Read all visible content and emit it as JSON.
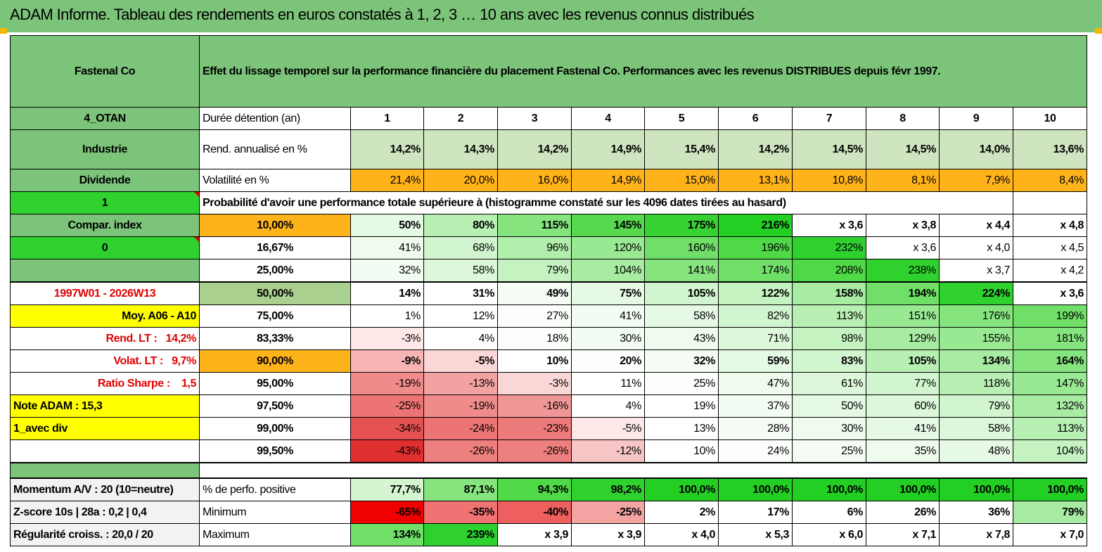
{
  "page_title": "ADAM Informe. Tableau des rendements en euros constatés à 1, 2, 3 … 10 ans avec les revenus connus distribués",
  "header": {
    "name": "Fastenal Co",
    "description": "Effet du lissage temporel sur la performance financière du placement Fastenal Co. Performances avec les revenus DISTRIBUES depuis févr 1997."
  },
  "left_labels": {
    "code": "4_OTAN",
    "sector": "Industrie",
    "type": "Dividende",
    "flag1": "1",
    "compar": "Compar. index",
    "flag0": "0",
    "period": "1997W01 - 2026W13",
    "moy": "Moy. A06 - A10",
    "rend_lt_label": "Rend. LT :",
    "rend_lt_value": "14,2%",
    "volat_lt_label": "Volat. LT :",
    "volat_lt_value": "9,7%",
    "sharpe_label": "Ratio Sharpe :",
    "sharpe_value": "1,5",
    "note": "Note ADAM : 15,3",
    "avec_div": "1_avec div",
    "momentum": "Momentum A/V : 20 (10=neutre)",
    "zscore": "Z-score 10s | 28a : 0,2 | 0,4",
    "regularite": "Régularité croiss. : 20,0 / 20"
  },
  "colors": {
    "green_header": "#7cc47a",
    "bright_green": "#2fd12f",
    "yellow": "#ffff00",
    "orange": "#ffb31a",
    "red_text": "#e00000"
  },
  "rows": {
    "duree": {
      "label": "Durée détention (an)",
      "values": [
        "1",
        "2",
        "3",
        "4",
        "5",
        "6",
        "7",
        "8",
        "9",
        "10"
      ]
    },
    "rend": {
      "label": "Rend. annualisé en %",
      "values": [
        "14,2%",
        "14,3%",
        "14,2%",
        "14,9%",
        "15,4%",
        "14,2%",
        "14,5%",
        "14,5%",
        "14,0%",
        "13,6%"
      ]
    },
    "vol": {
      "label": "Volatilité en %",
      "values": [
        "21,4%",
        "20,0%",
        "16,0%",
        "14,9%",
        "15,0%",
        "13,1%",
        "10,8%",
        "8,1%",
        "7,9%",
        "8,4%"
      ]
    },
    "proba_title": "Probabilité d'avoir une performance totale supérieure à (histogramme constaté sur les 4096 dates tirées au hasard)",
    "quantiles": [
      {
        "pct": "10,00%",
        "values": [
          "50%",
          "80%",
          "115%",
          "145%",
          "175%",
          "216%",
          "x 3,6",
          "x 3,8",
          "x 4,4",
          "x 4,8"
        ]
      },
      {
        "pct": "16,67%",
        "values": [
          "41%",
          "68%",
          "96%",
          "120%",
          "160%",
          "196%",
          "232%",
          "x 3,6",
          "x 4,0",
          "x 4,5"
        ]
      },
      {
        "pct": "25,00%",
        "values": [
          "32%",
          "58%",
          "79%",
          "104%",
          "141%",
          "174%",
          "208%",
          "238%",
          "x 3,7",
          "x 4,2"
        ]
      },
      {
        "pct": "50,00%",
        "values": [
          "14%",
          "31%",
          "49%",
          "75%",
          "105%",
          "122%",
          "158%",
          "194%",
          "224%",
          "x 3,6"
        ]
      },
      {
        "pct": "75,00%",
        "values": [
          "1%",
          "12%",
          "27%",
          "41%",
          "58%",
          "82%",
          "113%",
          "151%",
          "176%",
          "199%"
        ]
      },
      {
        "pct": "83,33%",
        "values": [
          "-3%",
          "4%",
          "18%",
          "30%",
          "43%",
          "71%",
          "98%",
          "129%",
          "155%",
          "181%"
        ]
      },
      {
        "pct": "90,00%",
        "values": [
          "-9%",
          "-5%",
          "10%",
          "20%",
          "32%",
          "59%",
          "83%",
          "105%",
          "134%",
          "164%"
        ]
      },
      {
        "pct": "95,00%",
        "values": [
          "-19%",
          "-13%",
          "-3%",
          "11%",
          "25%",
          "47%",
          "61%",
          "77%",
          "118%",
          "147%"
        ]
      },
      {
        "pct": "97,50%",
        "values": [
          "-25%",
          "-19%",
          "-16%",
          "4%",
          "19%",
          "37%",
          "50%",
          "60%",
          "79%",
          "132%"
        ]
      },
      {
        "pct": "99,00%",
        "values": [
          "-34%",
          "-24%",
          "-23%",
          "-5%",
          "13%",
          "28%",
          "30%",
          "41%",
          "58%",
          "113%"
        ]
      },
      {
        "pct": "99,50%",
        "values": [
          "-43%",
          "-26%",
          "-26%",
          "-12%",
          "10%",
          "24%",
          "25%",
          "35%",
          "48%",
          "104%"
        ]
      }
    ],
    "perf_pos": {
      "label": "% de perfo. positive",
      "values": [
        "77,7%",
        "87,1%",
        "94,3%",
        "98,2%",
        "100,0%",
        "100,0%",
        "100,0%",
        "100,0%",
        "100,0%",
        "100,0%"
      ]
    },
    "minimum": {
      "label": "Minimum",
      "values": [
        "-65%",
        "-35%",
        "-40%",
        "-25%",
        "2%",
        "17%",
        "6%",
        "26%",
        "36%",
        "79%"
      ]
    },
    "maximum": {
      "label": "Maximum",
      "values": [
        "134%",
        "239%",
        "x 3,9",
        "x 3,9",
        "x 4,0",
        "x 5,3",
        "x 6,0",
        "x 7,1",
        "x 7,8",
        "x 7,0"
      ]
    }
  }
}
